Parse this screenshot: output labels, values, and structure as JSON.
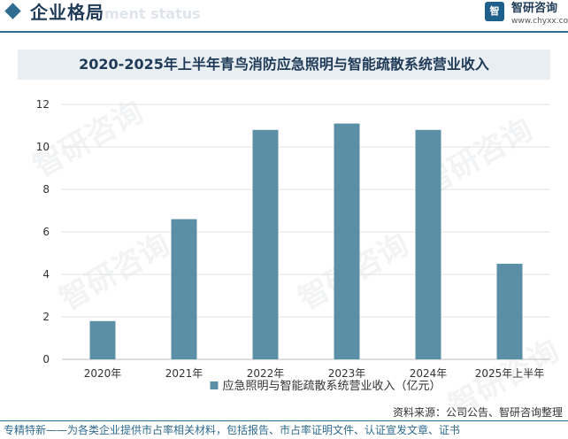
{
  "header": {
    "section_title": "企业格局",
    "ghost_text": "ment status",
    "logo_mark": "智",
    "brand_name": "智研咨询",
    "brand_url": "www.chyxx.com"
  },
  "watermark_text": "智研咨询",
  "colors": {
    "bar": "#5b8fa6",
    "accent": "#2f6b8f",
    "title_band": "#e9eef3"
  },
  "chart_data": {
    "type": "bar",
    "title": "2020-2025年上半年青鸟消防应急照明与智能疏散系统营业收入",
    "categories": [
      "2020年",
      "2021年",
      "2022年",
      "2023年",
      "2024年",
      "2025年上半年"
    ],
    "series": [
      {
        "name": "应急照明与智能疏散系统营业收入（亿元）",
        "values": [
          1.8,
          6.6,
          10.8,
          11.1,
          10.8,
          4.5
        ]
      }
    ],
    "ylim": [
      0,
      12
    ],
    "yticks": [
      0,
      2,
      4,
      6,
      8,
      10,
      12
    ],
    "xlabel": "",
    "ylabel": "",
    "legend": "bottom-center",
    "grid": true
  },
  "footer": {
    "source": "资料来源：公司公告、智研咨询整理",
    "tagline": "专精特新——为各类企业提供市占率相关材料，包括报告、市占率证明文件、认证宣发文章、证书"
  }
}
